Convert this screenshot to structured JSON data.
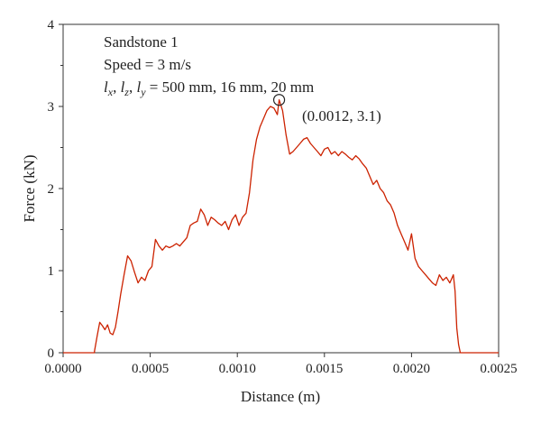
{
  "chart_data": {
    "type": "line",
    "title": "",
    "xlabel": "Distance (m)",
    "ylabel": "Force (kN)",
    "xlim": [
      0,
      0.0025
    ],
    "ylim": [
      0,
      4
    ],
    "x_ticks": [
      "0.0000",
      "0.0005",
      "0.0010",
      "0.0015",
      "0.0020",
      "0.0025"
    ],
    "y_ticks": [
      "0",
      "1",
      "2",
      "3",
      "4"
    ],
    "grid": false,
    "legend": "none",
    "series_color": "#cc2200",
    "annotations": {
      "material": "Sandstone 1",
      "speed": "Speed = 3 m/s",
      "dims": {
        "l1": "l",
        "s1": "x",
        "c1": ", ",
        "l2": "l",
        "s2": "z",
        "c2": ", ",
        "l3": "l",
        "s3": "y",
        "value": " = 500 mm, 16 mm, 20 mm"
      },
      "peak_label": "(0.0012, 3.1)",
      "peak_point": {
        "x": 0.00124,
        "y": 3.08
      }
    },
    "series": [
      {
        "x": [
          0,
          0.00018,
          0.00018,
          0.000195,
          0.00021,
          0.000225,
          0.00024,
          0.000255,
          0.00027,
          0.000285,
          0.0003,
          0.000315,
          0.00033,
          0.00035,
          0.00037,
          0.00039,
          0.00041,
          0.00043,
          0.00045,
          0.00047,
          0.00049,
          0.00051,
          0.00053,
          0.00055,
          0.00057,
          0.00059,
          0.00061,
          0.00063,
          0.00065,
          0.00067,
          0.00069,
          0.00071,
          0.00073,
          0.00075,
          0.00077,
          0.00079,
          0.00081,
          0.00083,
          0.00085,
          0.00087,
          0.00089,
          0.00091,
          0.00093,
          0.00095,
          0.00097,
          0.00099,
          0.00101,
          0.00103,
          0.00105,
          0.00107,
          0.00109,
          0.00111,
          0.00113,
          0.00115,
          0.00117,
          0.00119,
          0.00121,
          0.00123,
          0.00124,
          0.00126,
          0.00128,
          0.0013,
          0.00132,
          0.00134,
          0.00136,
          0.00138,
          0.0014,
          0.00142,
          0.00144,
          0.00146,
          0.00148,
          0.0015,
          0.00152,
          0.00154,
          0.00156,
          0.00158,
          0.0016,
          0.00162,
          0.00164,
          0.00166,
          0.00168,
          0.0017,
          0.00172,
          0.00174,
          0.00176,
          0.00178,
          0.0018,
          0.00182,
          0.00184,
          0.00186,
          0.00188,
          0.0019,
          0.00192,
          0.00194,
          0.00196,
          0.00198,
          0.002,
          0.00202,
          0.00204,
          0.00206,
          0.00208,
          0.0021,
          0.00212,
          0.00214,
          0.00216,
          0.00218,
          0.0022,
          0.00222,
          0.00224,
          0.00225,
          0.00226,
          0.00227,
          0.00228,
          0.0025
        ],
        "y": [
          0,
          0,
          0.02,
          0.2,
          0.37,
          0.33,
          0.28,
          0.34,
          0.24,
          0.22,
          0.31,
          0.5,
          0.71,
          0.95,
          1.18,
          1.12,
          0.98,
          0.85,
          0.92,
          0.88,
          1.0,
          1.05,
          1.38,
          1.3,
          1.25,
          1.3,
          1.28,
          1.3,
          1.33,
          1.3,
          1.35,
          1.4,
          1.55,
          1.58,
          1.6,
          1.75,
          1.68,
          1.55,
          1.65,
          1.62,
          1.58,
          1.55,
          1.6,
          1.5,
          1.62,
          1.68,
          1.55,
          1.65,
          1.7,
          1.95,
          2.35,
          2.6,
          2.75,
          2.85,
          2.95,
          3.0,
          2.98,
          2.9,
          3.08,
          2.95,
          2.65,
          2.42,
          2.45,
          2.5,
          2.55,
          2.6,
          2.62,
          2.55,
          2.5,
          2.45,
          2.4,
          2.48,
          2.5,
          2.42,
          2.45,
          2.4,
          2.45,
          2.42,
          2.38,
          2.35,
          2.4,
          2.36,
          2.3,
          2.25,
          2.15,
          2.05,
          2.1,
          2.0,
          1.95,
          1.85,
          1.8,
          1.7,
          1.55,
          1.45,
          1.35,
          1.25,
          1.45,
          1.15,
          1.05,
          1.0,
          0.95,
          0.9,
          0.85,
          0.82,
          0.95,
          0.88,
          0.92,
          0.85,
          0.95,
          0.75,
          0.3,
          0.1,
          0,
          0
        ]
      }
    ]
  }
}
